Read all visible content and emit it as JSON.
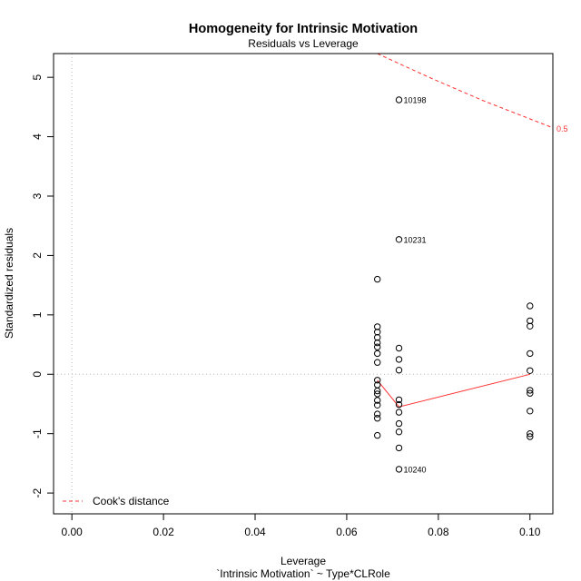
{
  "chart_data": {
    "type": "scatter",
    "title": "Homogeneity for Intrinsic Motivation",
    "subtitle": "Residuals vs Leverage",
    "xlabel": "Leverage",
    "xlabel2": "`Intrinsic Motivation` ~ Type*CLRole",
    "ylabel": "Standardized residuals",
    "xlim": [
      -0.004,
      0.105
    ],
    "ylim": [
      -2.35,
      5.4
    ],
    "xticks": [
      "0.00",
      "0.02",
      "0.04",
      "0.06",
      "0.08",
      "0.10"
    ],
    "xtick_values": [
      0,
      0.02,
      0.04,
      0.06,
      0.08,
      0.1
    ],
    "yticks": [
      "-2",
      "-1",
      "0",
      "1",
      "2",
      "3",
      "4",
      "5"
    ],
    "ytick_values": [
      -2,
      -1,
      0,
      1,
      2,
      3,
      4,
      5
    ],
    "points": [
      {
        "x": 0.0667,
        "y": 1.6
      },
      {
        "x": 0.0667,
        "y": 0.8
      },
      {
        "x": 0.0667,
        "y": 0.71
      },
      {
        "x": 0.0667,
        "y": 0.62
      },
      {
        "x": 0.0667,
        "y": 0.53
      },
      {
        "x": 0.0667,
        "y": 0.46
      },
      {
        "x": 0.0667,
        "y": 0.35
      },
      {
        "x": 0.0667,
        "y": 0.2
      },
      {
        "x": 0.0667,
        "y": -0.1
      },
      {
        "x": 0.0667,
        "y": -0.18
      },
      {
        "x": 0.0667,
        "y": -0.28
      },
      {
        "x": 0.0667,
        "y": -0.33
      },
      {
        "x": 0.0667,
        "y": -0.44
      },
      {
        "x": 0.0667,
        "y": -0.52
      },
      {
        "x": 0.0667,
        "y": -0.67
      },
      {
        "x": 0.0667,
        "y": -0.74
      },
      {
        "x": 0.0667,
        "y": -1.03
      },
      {
        "x": 0.0714,
        "y": 4.62
      },
      {
        "x": 0.0714,
        "y": 2.27
      },
      {
        "x": 0.0714,
        "y": 0.44
      },
      {
        "x": 0.0714,
        "y": 0.25
      },
      {
        "x": 0.0714,
        "y": 0.07
      },
      {
        "x": 0.0714,
        "y": -0.43
      },
      {
        "x": 0.0714,
        "y": -0.51
      },
      {
        "x": 0.0714,
        "y": -0.64
      },
      {
        "x": 0.0714,
        "y": -0.83
      },
      {
        "x": 0.0714,
        "y": -0.97
      },
      {
        "x": 0.0714,
        "y": -1.24
      },
      {
        "x": 0.0714,
        "y": -1.6
      },
      {
        "x": 0.1,
        "y": 1.15
      },
      {
        "x": 0.1,
        "y": 0.9
      },
      {
        "x": 0.1,
        "y": 0.81
      },
      {
        "x": 0.1,
        "y": 0.35
      },
      {
        "x": 0.1,
        "y": 0.06
      },
      {
        "x": 0.1,
        "y": -0.27
      },
      {
        "x": 0.1,
        "y": -0.32
      },
      {
        "x": 0.1,
        "y": -0.62
      },
      {
        "x": 0.1,
        "y": -1.0
      },
      {
        "x": 0.1,
        "y": -1.05
      }
    ],
    "point_labels": [
      {
        "text": "10198",
        "x": 0.0714,
        "y": 4.62
      },
      {
        "text": "10231",
        "x": 0.0714,
        "y": 2.27
      },
      {
        "text": "10240",
        "x": 0.0714,
        "y": -1.6
      }
    ],
    "smoother": {
      "x": [
        0.0667,
        0.0714,
        0.1
      ],
      "y": [
        -0.1,
        -0.55,
        0.0
      ],
      "color": "#ff3030"
    },
    "cooks_distance": {
      "level_label": "0.5",
      "color": "#ff3030",
      "x": [
        0.0667,
        0.072,
        0.078,
        0.084,
        0.09,
        0.096,
        0.1,
        0.105
      ],
      "y": [
        5.4,
        5.21,
        5.0,
        4.8,
        4.6,
        4.42,
        4.3,
        4.15
      ]
    },
    "legend": {
      "position": "bottom-left",
      "label": "Cook's distance"
    },
    "grid": false,
    "reference_lines": {
      "x0": true,
      "y0": true,
      "color": "#bbbbbb"
    }
  }
}
